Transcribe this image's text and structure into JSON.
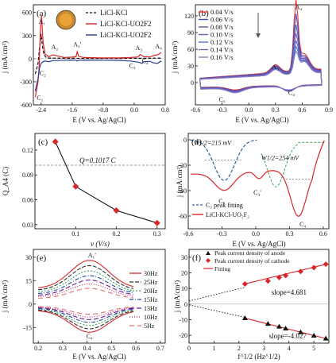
{
  "chart_data": [
    {
      "panel": "(a)",
      "type": "line",
      "xlabel": "E (V vs. Ag/AgCl)",
      "ylabel": "j (mA/cm²)",
      "xlim": [
        -2.6,
        0.8
      ],
      "ylim": [
        -600,
        700
      ],
      "xticks": [
        "-2.4",
        "-1.6",
        "-0.8",
        "0.0",
        "0.8"
      ],
      "xtick_values": [
        -2.4,
        -1.6,
        -0.8,
        0.0,
        0.8
      ],
      "yticks": [
        "-600",
        "-300",
        "0",
        "300",
        "600"
      ],
      "ytick_values": [
        -600,
        -300,
        0,
        300,
        600
      ],
      "legend_position": "top-right",
      "series": [
        {
          "name": "LiCl-KCl",
          "color": "#111111",
          "dash": "4,2",
          "x": [
            -2.55,
            -2.48,
            -2.44,
            -2.4,
            -2.37,
            -2.33,
            -2.28,
            -2.2,
            -1.6,
            -1.0,
            -0.4,
            0.0,
            0.4,
            0.7
          ],
          "y": [
            -200,
            -60,
            150,
            320,
            180,
            60,
            20,
            8,
            5,
            4,
            4,
            5,
            6,
            8
          ]
        },
        {
          "name": "LiCl-KCl-UO2F2",
          "color": "#d9262b",
          "x": [
            -2.55,
            -2.48,
            -2.45,
            -2.42,
            -2.39,
            -2.35,
            -2.3,
            -2.2,
            -2.1,
            -1.8,
            -1.6,
            -1.5,
            -1.47,
            -1.43,
            -1.3,
            -0.8,
            -0.4,
            -0.1,
            0.1,
            0.15,
            0.25,
            0.4,
            0.5,
            0.6,
            0.7
          ],
          "y": [
            -500,
            -300,
            -100,
            380,
            560,
            220,
            60,
            25,
            50,
            15,
            20,
            25,
            90,
            30,
            15,
            10,
            10,
            15,
            22,
            55,
            25,
            22,
            40,
            50,
            80
          ]
        },
        {
          "name": "LiCl-KCl-UO2F2",
          "color": "#2b3a8f",
          "x": [
            -2.55,
            -2.48,
            -2.44,
            -2.4,
            -2.35,
            -2.3,
            -2.2,
            -2.1,
            -1.8,
            -1.6,
            -1.5,
            -1.47,
            -1.43,
            -1.3,
            -0.8,
            -0.4,
            -0.1,
            0.1,
            0.2,
            0.25,
            0.4,
            0.5,
            0.6,
            0.7
          ],
          "y": [
            -420,
            -260,
            -120,
            -60,
            -40,
            -30,
            -40,
            -25,
            -20,
            -18,
            -20,
            -30,
            -20,
            -18,
            -20,
            -22,
            -30,
            -45,
            -60,
            -40,
            -35,
            -55,
            -60,
            -30
          ]
        }
      ],
      "annotations": [
        "A₁",
        "C₁",
        "C₂",
        "A₂",
        "A₂'",
        "C₃",
        "A₃",
        "C₄",
        "A₄"
      ]
    },
    {
      "panel": "(b)",
      "type": "line",
      "xlabel": "E (V vs. Ag/AgCl)",
      "ylabel": "j (mA/cm²)",
      "xlim": [
        -0.6,
        0.9
      ],
      "ylim": [
        -40,
        140
      ],
      "xticks": [
        "-0.6",
        "-0.3",
        "0.0",
        "0.3",
        "0.6",
        "0.9"
      ],
      "xtick_values": [
        -0.6,
        -0.3,
        0.0,
        0.3,
        0.6,
        0.9
      ],
      "yticks": [
        "0",
        "30",
        "60",
        "90",
        "120"
      ],
      "ytick_values": [
        0,
        30,
        60,
        90,
        120
      ],
      "legend_position": "top-left",
      "series": [
        {
          "name": "0.04 V/s",
          "color": "#e53935",
          "scale": 1.0
        },
        {
          "name": "0.06 V/s",
          "color": "#3f51b5",
          "scale": 0.86
        },
        {
          "name": "0.08 V/s",
          "color": "#6a4fa0",
          "scale": 0.74
        },
        {
          "name": "0.10 V/s",
          "color": "#7e57c2",
          "scale": 0.64
        },
        {
          "name": "0.12 V/s",
          "color": "#4a6fc0",
          "scale": 0.55
        },
        {
          "name": "0.14 V/s",
          "color": "#5c6bc0",
          "scale": 0.47
        },
        {
          "name": "0.16 V/s",
          "color": "#8e7cc3",
          "scale": 0.4
        }
      ],
      "annotations": [
        "A₄",
        "A₃",
        "C₃",
        "C₄"
      ]
    },
    {
      "panel": "(c)",
      "type": "scatter",
      "xlabel": "v (V/s)",
      "ylabel": "Q_A4 (C)",
      "xlim": [
        0.0,
        0.32
      ],
      "ylim": [
        0.025,
        0.14
      ],
      "xticks": [
        "0.1",
        "0.2",
        "0.3"
      ],
      "xtick_values": [
        0.1,
        0.2,
        0.3
      ],
      "yticks": [
        "0.03",
        "0.06",
        "0.09",
        "0.12"
      ],
      "ytick_values": [
        0.03,
        0.06,
        0.09,
        0.12
      ],
      "x": [
        0.05,
        0.1,
        0.2,
        0.3
      ],
      "y": [
        0.13,
        0.076,
        0.047,
        0.032
      ],
      "reference_line": {
        "y": 0.1017,
        "label": "Q=0.1017 C"
      }
    },
    {
      "panel": "(d)",
      "type": "line",
      "xlabel": "E (V vs. Ag/AgCl)",
      "ylabel": "j (mA/cm²)",
      "xlim": [
        -0.6,
        0.65
      ],
      "ylim": [
        -70,
        5
      ],
      "xticks": [
        "-0.6",
        "-0.3",
        "0.0",
        "0.3",
        "0.6"
      ],
      "xtick_values": [
        -0.6,
        -0.3,
        0.0,
        0.3,
        0.6
      ],
      "yticks": [
        "0",
        "-20",
        "-40",
        "-60"
      ],
      "ytick_values": [
        0,
        -20,
        -40,
        -60
      ],
      "legend_position": "bottom-left",
      "series": [
        {
          "name": "C₃ peak fitting",
          "color": "#2e5fa8",
          "dash": "4,2"
        },
        {
          "name": "LiCl-KCl-UO₂F₂",
          "color": "#d9262b"
        }
      ],
      "annotations": [
        "W1/2=215 mV",
        "W1/2=254 mV",
        "C₃",
        "C₃'",
        "C₄"
      ]
    },
    {
      "panel": "(e)",
      "type": "line",
      "xlabel": "E (V vs. Ag/AgCl)",
      "ylabel": "j (mA/cm²)",
      "xlim": [
        0.18,
        0.72
      ],
      "ylim": [
        -25,
        35
      ],
      "xticks": [
        "0.2",
        "0.3",
        "0.4",
        "0.5",
        "0.6",
        "0.7"
      ],
      "xtick_values": [
        0.2,
        0.3,
        0.4,
        0.5,
        0.6,
        0.7
      ],
      "yticks": [
        "-15",
        "0",
        "15",
        "30"
      ],
      "ytick_values": [
        -15,
        0,
        15,
        30
      ],
      "legend_position": "right",
      "series": [
        {
          "name": "30Hz",
          "color": "#d9262b",
          "dash": "",
          "amp": 1.0
        },
        {
          "name": "25Hz",
          "color": "#333333",
          "dash": "5,2",
          "amp": 0.88
        },
        {
          "name": "20Hz",
          "color": "#3aa657",
          "dash": "2,2",
          "amp": 0.76
        },
        {
          "name": "15Hz",
          "color": "#1f4f9f",
          "dash": "5,2,1,2",
          "amp": 0.65
        },
        {
          "name": "13Hz",
          "color": "#6a1b9a",
          "dash": "6,3",
          "amp": 0.55
        },
        {
          "name": "10Hz",
          "color": "#c2185b",
          "dash": "1,2",
          "amp": 0.46
        },
        {
          "name": "5Hz",
          "color": "#e57373",
          "dash": "6,4",
          "amp": 0.36
        }
      ],
      "annotations": [
        "A₁'",
        "C₄"
      ]
    },
    {
      "panel": "(f)",
      "type": "scatter",
      "xlabel": "f^1/2 (Hz^1/2)",
      "ylabel": "j (mA/cm²)",
      "xlim": [
        0,
        5.6
      ],
      "ylim": [
        -25,
        35
      ],
      "xticks": [
        "0",
        "1",
        "2",
        "3",
        "4",
        "5"
      ],
      "xtick_values": [
        0,
        1,
        2,
        3,
        4,
        5
      ],
      "yticks": [
        "-20",
        "-10",
        "0",
        "10",
        "20",
        "30"
      ],
      "ytick_values": [
        -20,
        -10,
        0,
        10,
        20,
        30
      ],
      "legend_position": "top-left",
      "series": [
        {
          "name": "Peak current density of anode",
          "marker": "triangle",
          "color": "#111111",
          "x": [
            2.24,
            3.16,
            3.61,
            3.87,
            4.47,
            5.0,
            5.48
          ],
          "y": [
            -9.0,
            -12.6,
            -14.4,
            -15.6,
            -18.0,
            -20.2,
            -22.0
          ]
        },
        {
          "name": "Peak current density of cathode",
          "marker": "diamond",
          "color": "#d9262b",
          "x": [
            2.24,
            3.16,
            3.61,
            3.87,
            4.47,
            5.0,
            5.48
          ],
          "y": [
            12.9,
            14.8,
            17.0,
            18.3,
            20.9,
            23.4,
            25.5
          ]
        },
        {
          "name": "Fitting",
          "color": "#d9262b"
        }
      ],
      "annotations": [
        "slope=4.681",
        "slope=-4.027"
      ]
    }
  ]
}
